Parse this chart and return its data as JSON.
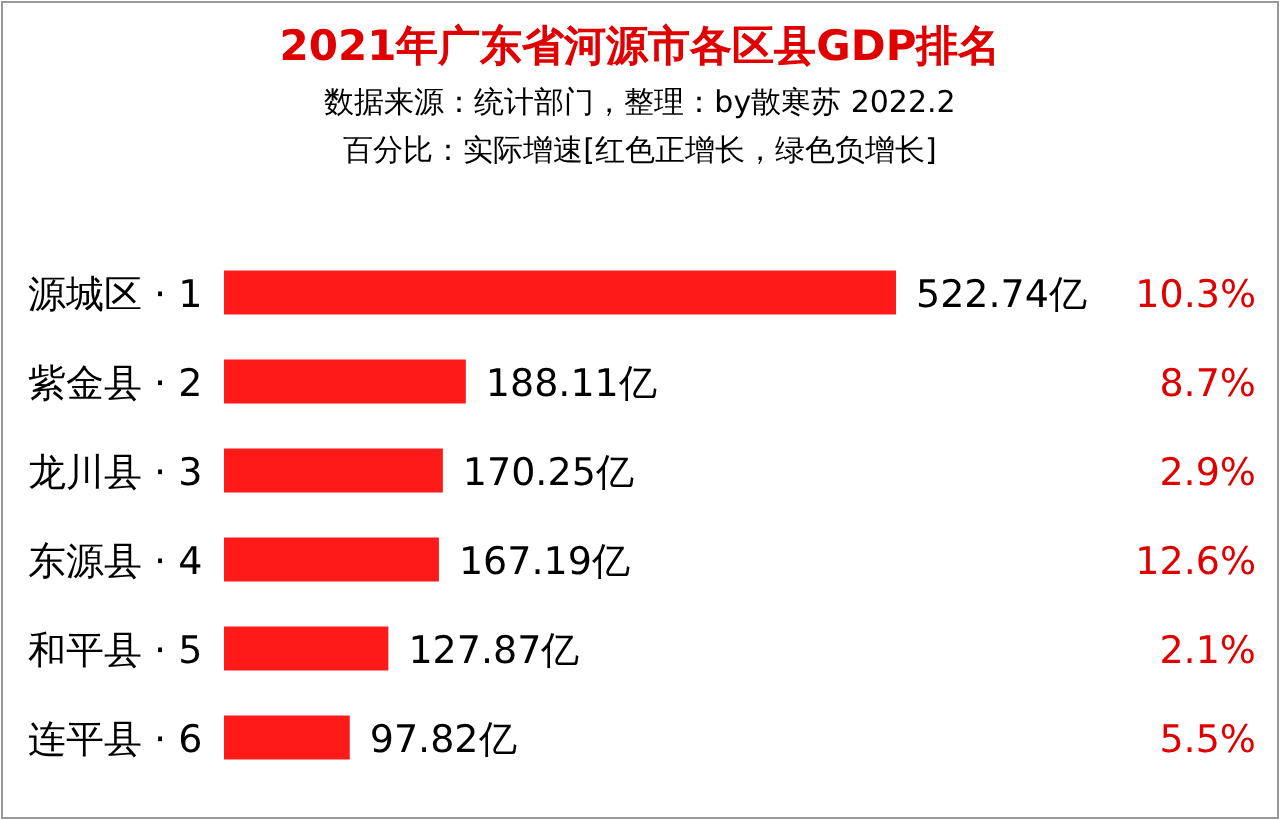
{
  "chart_data": {
    "type": "bar",
    "orientation": "horizontal",
    "title": "2021年广东省河源市各区县GDP排名",
    "subtitle": "数据来源：统计部门，整理：by散寒苏 2022.2",
    "categories": [
      "源城区 · 1",
      "紫金县 · 2",
      "龙川县 · 3",
      "东源县 · 4",
      "和平县 · 5",
      "连平县 · 6"
    ],
    "values": [
      522.74,
      188.11,
      170.25,
      167.19,
      127.87,
      97.82
    ],
    "value_labels": [
      "522.74亿",
      "188.11亿",
      "170.25亿",
      "167.19亿",
      "127.87亿",
      "97.82亿"
    ],
    "color": "#ff1a1a",
    "annotations": [
      "百分比：实际增速[红色正增长，绿色负增长]",
      "10.3%",
      "8.7%",
      "2.9%",
      "12.6%",
      "2.1%",
      "5.5%"
    ]
  }
}
